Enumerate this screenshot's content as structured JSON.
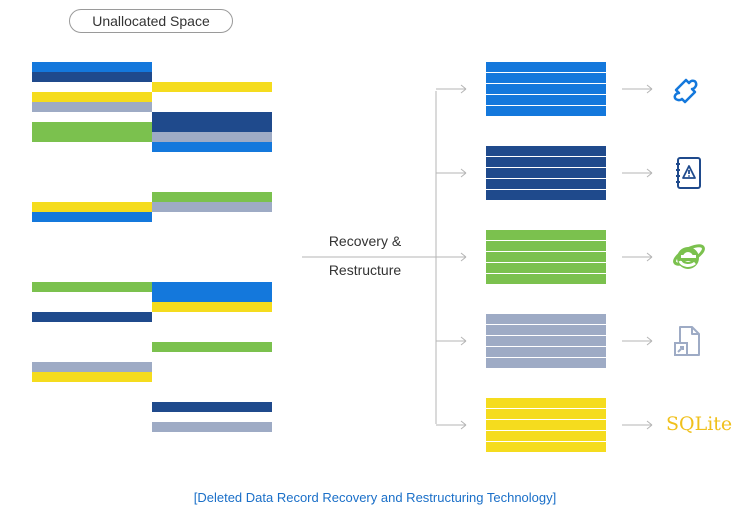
{
  "header": {
    "label": "Unallocated Space"
  },
  "process": {
    "label_line1": "Recovery &",
    "label_line2": "Restructure"
  },
  "caption": "[Deleted Data Record Recovery and Restructuring Technology]",
  "colors": {
    "blue": "#1478dc",
    "navy": "#1f4a8c",
    "yellow": "#f5dc1e",
    "gray": "#9eabc5",
    "green": "#7bc14e",
    "arrow": "#b5b5b5",
    "caption": "#1a6fc8"
  },
  "fragments": {
    "left": [
      "blue",
      "navy",
      "white",
      "yellow",
      "gray",
      "white",
      "green",
      "green",
      "white",
      "white",
      "white",
      "white",
      "white",
      "white",
      "yellow",
      "blue",
      "white",
      "white",
      "white",
      "white",
      "white",
      "white",
      "green",
      "white",
      "white",
      "navy",
      "white",
      "white",
      "white",
      "white",
      "gray",
      "yellow"
    ],
    "right": [
      "white",
      "white",
      "yellow",
      "white",
      "white",
      "navy",
      "navy",
      "gray",
      "blue",
      "white",
      "white",
      "white",
      "white",
      "green",
      "gray",
      "white",
      "white",
      "white",
      "white",
      "white",
      "white",
      "white",
      "blue",
      "blue",
      "yellow",
      "white",
      "white",
      "white",
      "green",
      "white",
      "white",
      "white",
      "white",
      "white",
      "navy",
      "white",
      "gray"
    ]
  },
  "outputs": [
    {
      "color": "blue",
      "icon": "puzzle-icon"
    },
    {
      "color": "navy",
      "icon": "warning-notebook-icon"
    },
    {
      "color": "green",
      "icon": "internet-explorer-icon"
    },
    {
      "color": "gray",
      "icon": "shortcut-document-icon"
    },
    {
      "color": "yellow",
      "icon": "sqlite-logo",
      "icon_text": "SQLite"
    }
  ]
}
